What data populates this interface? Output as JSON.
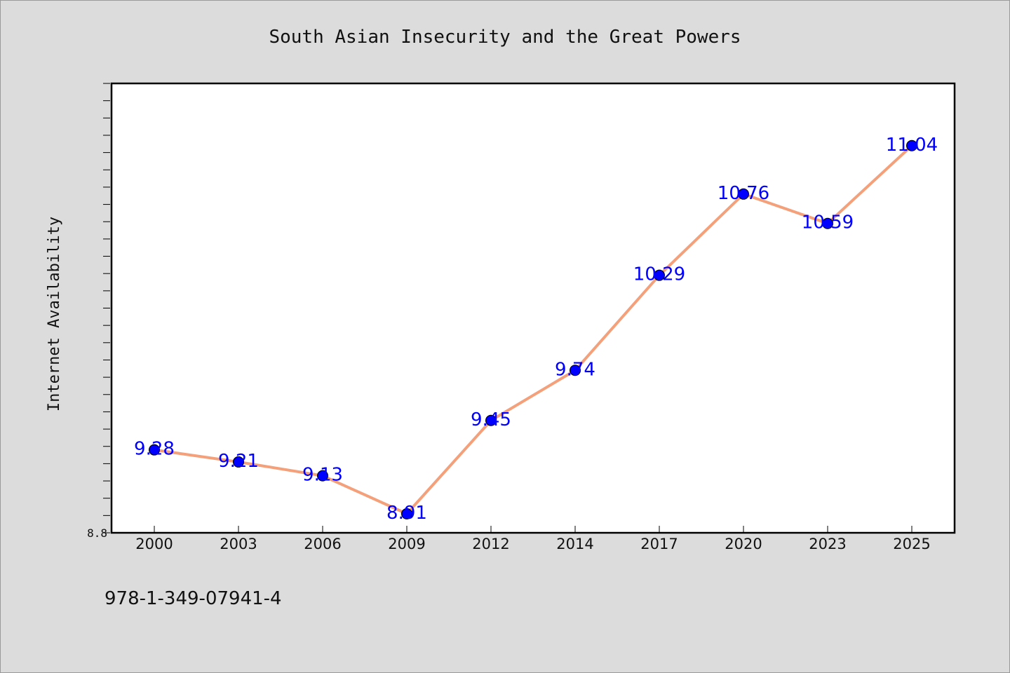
{
  "chart_data": {
    "type": "line",
    "title": "South Asian Insecurity and the Great Powers",
    "xlabel": "",
    "ylabel": "Internet Availability",
    "categories": [
      "2000",
      "2003",
      "2006",
      "2009",
      "2012",
      "2014",
      "2017",
      "2020",
      "2023",
      "2025"
    ],
    "series": [
      {
        "values": [
          9.28,
          9.21,
          9.13,
          8.91,
          9.45,
          9.74,
          10.29,
          10.76,
          10.59,
          11.04
        ],
        "labels": [
          "9.28",
          "9.21",
          "9.13",
          "8.91",
          "9.45",
          "9.74",
          "10.29",
          "10.76",
          "10.59",
          "11.04"
        ],
        "line_color": "#f4a07a",
        "marker_color": "#0000ff"
      }
    ],
    "ylim": [
      8.8,
      11.4
    ],
    "y_tick_labels": [
      "8.8"
    ],
    "grid": false,
    "legend": "none",
    "plot_background": "#ffffff",
    "figure_background": "#dcdcdc"
  },
  "footer": {
    "isbn": "978-1-349-07941-4"
  }
}
